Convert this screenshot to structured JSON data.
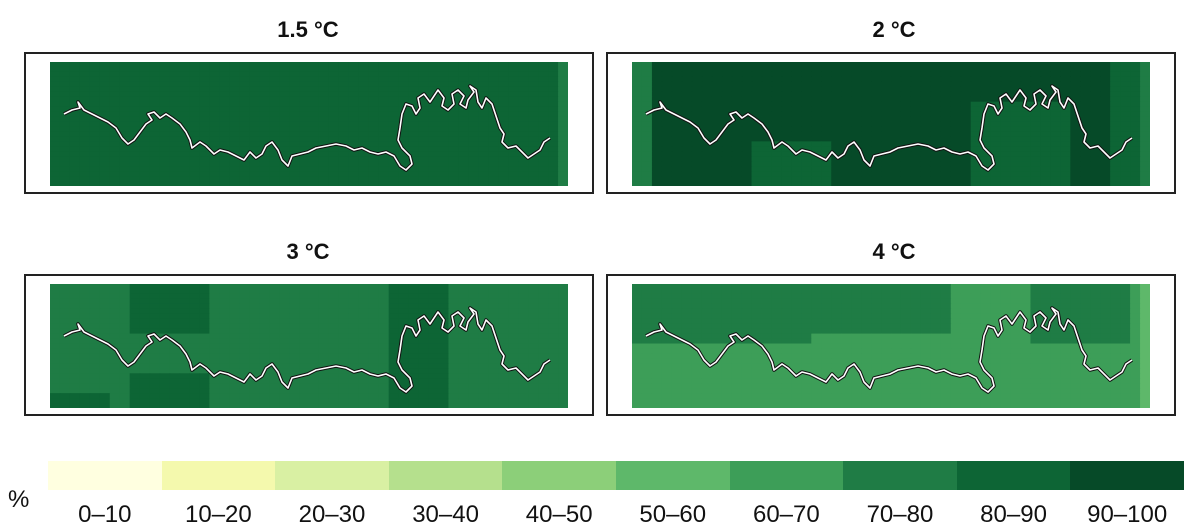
{
  "panels": [
    {
      "title": "1.5 °C",
      "base_bin": 8,
      "patches": [
        {
          "c0": 0,
          "c1": 4,
          "r0": 0,
          "r1": 25,
          "bin": 8
        }
      ],
      "right_strip_bin": 7
    },
    {
      "title": "2 °C",
      "base_bin": 9,
      "patches": [
        {
          "c0": 0,
          "c1": 2,
          "r0": 0,
          "r1": 25,
          "bin": 7
        },
        {
          "c0": 34,
          "c1": 44,
          "r0": 8,
          "r1": 25,
          "bin": 8
        },
        {
          "c0": 12,
          "c1": 20,
          "r0": 16,
          "r1": 25,
          "bin": 8
        },
        {
          "c0": 48,
          "c1": 52,
          "r0": 0,
          "r1": 25,
          "bin": 8
        }
      ],
      "right_strip_bin": 7
    },
    {
      "title": "3 °C",
      "base_bin": 7,
      "patches": [
        {
          "c0": 8,
          "c1": 16,
          "r0": 0,
          "r1": 10,
          "bin": 8
        },
        {
          "c0": 8,
          "c1": 16,
          "r0": 18,
          "r1": 25,
          "bin": 8
        },
        {
          "c0": 0,
          "c1": 6,
          "r0": 22,
          "r1": 25,
          "bin": 8
        },
        {
          "c0": 34,
          "c1": 40,
          "r0": 0,
          "r1": 25,
          "bin": 8
        },
        {
          "c0": 40,
          "c1": 48,
          "r0": 0,
          "r1": 25,
          "bin": 7
        }
      ],
      "right_strip_bin": 7
    },
    {
      "title": "4 °C",
      "base_bin": 6,
      "patches": [
        {
          "c0": 0,
          "c1": 18,
          "r0": 0,
          "r1": 12,
          "bin": 7
        },
        {
          "c0": 18,
          "c1": 32,
          "r0": 0,
          "r1": 10,
          "bin": 7
        },
        {
          "c0": 40,
          "c1": 50,
          "r0": 0,
          "r1": 12,
          "bin": 7
        },
        {
          "c0": 0,
          "c1": 10,
          "r0": 14,
          "r1": 25,
          "bin": 6
        }
      ],
      "right_strip_bin": 5
    }
  ],
  "legend": {
    "unit": "%",
    "bins": [
      "0–10",
      "10–20",
      "20–30",
      "30–40",
      "40–50",
      "50–60",
      "60–70",
      "70–80",
      "80–90",
      "90–100"
    ],
    "colors": [
      "#ffffe0",
      "#f4f9ad",
      "#d9f0a3",
      "#b5e08d",
      "#8ccf79",
      "#5eb86a",
      "#3d9e58",
      "#1f7c45",
      "#0d6535",
      "#064a28"
    ]
  }
}
